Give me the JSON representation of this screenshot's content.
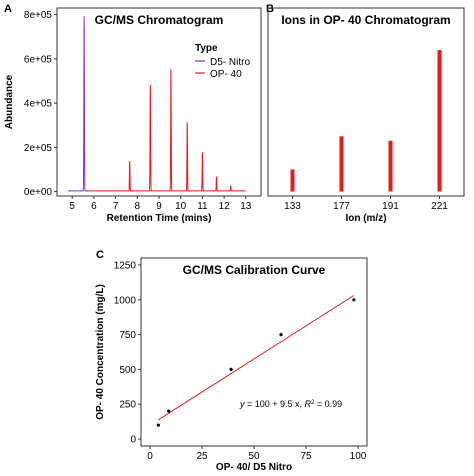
{
  "chart_data": [
    {
      "panel": "A",
      "type": "line",
      "title": "GC/MS Chromatogram",
      "xlabel": "Retention Time (mins)",
      "ylabel": "Abundance",
      "xlim": [
        4.3,
        13.7
      ],
      "ylim": [
        -20000,
        830000
      ],
      "x_ticks": [
        5,
        6,
        7,
        8,
        9,
        10,
        11,
        12,
        13
      ],
      "y_ticks": [
        {
          "value": 0,
          "label": "0e+00"
        },
        {
          "value": 200000,
          "label": "2e+05"
        },
        {
          "value": 400000,
          "label": "4e+05"
        },
        {
          "value": 600000,
          "label": "6e+05"
        },
        {
          "value": 800000,
          "label": "8e+05"
        }
      ],
      "legend": {
        "title": "Type",
        "position": "top-right"
      },
      "series": [
        {
          "name": "D5- Nitro",
          "color": "#7b2fd6",
          "peaks": [
            {
              "x": 5.55,
              "y": 790000
            }
          ]
        },
        {
          "name": "OP- 40",
          "color": "#e41a1c",
          "peaks": [
            {
              "x": 7.65,
              "y": 135000
            },
            {
              "x": 8.6,
              "y": 480000
            },
            {
              "x": 9.55,
              "y": 550000
            },
            {
              "x": 10.3,
              "y": 310000
            },
            {
              "x": 11.0,
              "y": 175000
            },
            {
              "x": 11.65,
              "y": 65000
            },
            {
              "x": 12.3,
              "y": 20000
            }
          ]
        }
      ]
    },
    {
      "panel": "B",
      "type": "bar",
      "title": "Ions in OP- 40 Chromatogram",
      "xlabel": "Ion (m/z)",
      "ylabel": "",
      "categories": [
        "133",
        "177",
        "191",
        "221"
      ],
      "values": [
        100000,
        250000,
        230000,
        640000
      ],
      "ylim": [
        -20000,
        830000
      ],
      "color": "#e41a1c"
    },
    {
      "panel": "C",
      "type": "scatter",
      "title": "GC/MS Calibration Curve",
      "xlabel": "OP- 40/ D5 Nitro",
      "ylabel": "OP- 40 Concentration (mg/L)",
      "xlim": [
        0,
        100
      ],
      "ylim": [
        0,
        1250
      ],
      "x_ticks": [
        0,
        25,
        50,
        75,
        100
      ],
      "y_ticks": [
        0,
        250,
        500,
        750,
        1000,
        1250
      ],
      "points": [
        {
          "x": 4,
          "y": 100
        },
        {
          "x": 9,
          "y": 200
        },
        {
          "x": 39,
          "y": 500
        },
        {
          "x": 63,
          "y": 750
        },
        {
          "x": 98,
          "y": 1000
        }
      ],
      "fit": {
        "intercept": 100,
        "slope": 9.5,
        "x_range": [
          4,
          98
        ],
        "color": "#e41a1c"
      },
      "equation": {
        "prefix": "y",
        "body": " = 100 + 9.5 x, ",
        "r_label": "R",
        "r_value": " = 0.99"
      }
    }
  ]
}
